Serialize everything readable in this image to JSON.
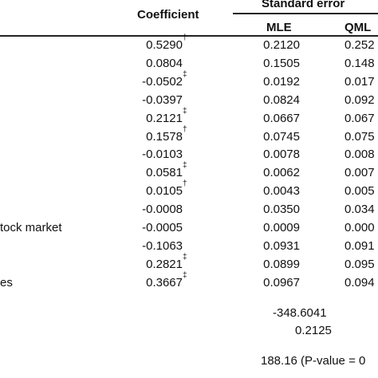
{
  "header": {
    "coefficient": "Coefficient",
    "standard_error": "Standard error",
    "mle": "MLE",
    "qml": "QML"
  },
  "rows": [
    {
      "label": "",
      "coef": "0.5290",
      "mark": "†",
      "mle": "0.2120",
      "qml": "0.252"
    },
    {
      "label": "",
      "coef": "0.0804",
      "mark": "",
      "mle": "0.1505",
      "qml": "0.148"
    },
    {
      "label": "",
      "coef": "-0.0502",
      "mark": "‡",
      "mle": "0.0192",
      "qml": "0.017"
    },
    {
      "label": "",
      "coef": "-0.0397",
      "mark": "",
      "mle": "0.0824",
      "qml": "0.092"
    },
    {
      "label": "",
      "coef": "0.2121",
      "mark": "‡",
      "mle": "0.0667",
      "qml": "0.067"
    },
    {
      "label": "",
      "coef": "0.1578",
      "mark": "†",
      "mle": "0.0745",
      "qml": "0.075"
    },
    {
      "label": "",
      "coef": "-0.0103",
      "mark": "",
      "mle": "0.0078",
      "qml": "0.008"
    },
    {
      "label": "",
      "coef": "0.0581",
      "mark": "‡",
      "mle": "0.0062",
      "qml": "0.007"
    },
    {
      "label": "",
      "coef": "0.0105",
      "mark": "†",
      "mle": "0.0043",
      "qml": "0.005"
    },
    {
      "label": "",
      "coef": "-0.0008",
      "mark": "",
      "mle": "0.0350",
      "qml": "0.034"
    },
    {
      "label": "tock market",
      "coef": "-0.0005",
      "mark": "",
      "mle": "0.0009",
      "qml": "0.000"
    },
    {
      "label": "",
      "coef": "-0.1063",
      "mark": "",
      "mle": "0.0931",
      "qml": "0.091"
    },
    {
      "label": "",
      "coef": "0.2821",
      "mark": "‡",
      "mle": "0.0899",
      "qml": "0.095"
    },
    {
      "label": "es",
      "coef": "0.3667",
      "mark": "‡",
      "mle": "0.0967",
      "qml": "0.094"
    }
  ],
  "footer": {
    "loglik": "-348.6041",
    "stat": "0.2125",
    "test": "188.16 (P-value = 0"
  }
}
